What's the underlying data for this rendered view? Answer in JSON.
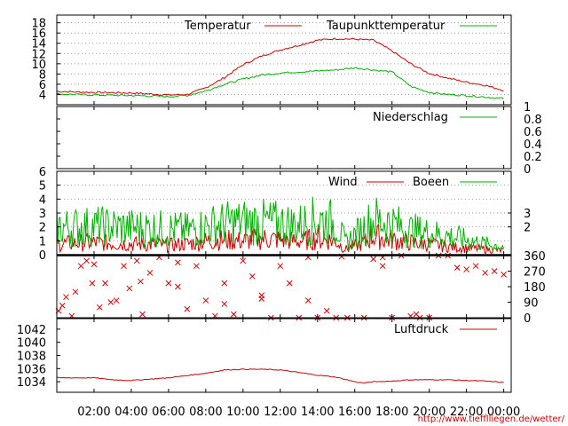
{
  "credit": "http://www.tiefflliegen.de/wetter/",
  "x_axis": {
    "hours": [
      2,
      4,
      6,
      8,
      10,
      12,
      14,
      16,
      18,
      20,
      22,
      24
    ],
    "labels": [
      "02:00",
      "04:00",
      "06:00",
      "08:00",
      "10:00",
      "12:00",
      "14:00",
      "16:00",
      "18:00",
      "20:00",
      "22:00",
      "00:00"
    ],
    "range_hours": [
      0,
      24.4
    ]
  },
  "colors": {
    "red": "#cc0000",
    "green": "#00b000",
    "grid": "#999999"
  },
  "chart_data": [
    {
      "type": "line",
      "panel": "temperature",
      "ylim": [
        2,
        19.5
      ],
      "yticks": [
        4,
        6,
        8,
        10,
        12,
        14,
        16,
        18
      ],
      "grid": true,
      "legend": "top-right",
      "x": [
        0,
        2,
        4,
        6,
        7,
        8,
        9,
        10,
        11,
        12,
        13,
        14,
        15,
        16,
        17,
        18,
        19,
        20,
        21,
        22,
        23,
        24
      ],
      "series": [
        {
          "name": "Temperatur",
          "color": "red",
          "values": [
            4.6,
            4.4,
            4.3,
            3.9,
            4.0,
            5.3,
            7.3,
            9.8,
            11.5,
            12.7,
            13.6,
            14.6,
            14.9,
            14.8,
            14.6,
            12.5,
            10.0,
            8.1,
            7.2,
            6.4,
            5.8,
            4.8
          ]
        },
        {
          "name": "Taupunkttemperatur",
          "color": "green",
          "values": [
            4.1,
            3.9,
            3.8,
            3.6,
            3.8,
            4.7,
            6.0,
            7.0,
            7.8,
            8.2,
            8.4,
            8.6,
            8.8,
            9.2,
            8.8,
            8.4,
            5.6,
            4.4,
            4.0,
            3.8,
            3.5,
            3.2
          ]
        }
      ]
    },
    {
      "type": "line",
      "panel": "precipitation",
      "ylim": [
        0,
        1
      ],
      "yticks": [
        0,
        0.2,
        0.4,
        0.6,
        0.8,
        1
      ],
      "legend": "top-right",
      "x": [
        0,
        24
      ],
      "series": [
        {
          "name": "Niederschlag",
          "color": "green",
          "values": [
            0,
            0
          ]
        }
      ]
    },
    {
      "type": "line",
      "panel": "wind",
      "ylim": [
        0,
        6
      ],
      "yticks": [
        0,
        1,
        2,
        3,
        4,
        5,
        6
      ],
      "right_yticks": [
        2,
        3
      ],
      "grid": true,
      "legend": "top-right",
      "x": [
        0,
        2,
        4,
        6,
        7,
        8,
        9,
        10,
        11,
        12,
        13,
        14,
        15,
        15.5,
        16.5,
        17,
        18,
        19,
        20,
        21,
        22,
        23,
        24
      ],
      "series": [
        {
          "name": "Wind",
          "color": "red",
          "values": [
            0.8,
            0.9,
            0.8,
            0.7,
            0.8,
            1.0,
            1.1,
            1.0,
            1.2,
            1.1,
            1.0,
            1.2,
            1.0,
            0.4,
            0.9,
            1.4,
            1.1,
            0.9,
            0.8,
            0.6,
            0.5,
            0.4,
            0.3
          ]
        },
        {
          "name": "Boeen",
          "color": "green",
          "values": [
            2.0,
            2.1,
            2.0,
            1.9,
            1.8,
            2.1,
            2.3,
            2.4,
            2.4,
            2.3,
            2.2,
            2.6,
            2.3,
            0.9,
            2.0,
            2.6,
            2.3,
            1.8,
            1.6,
            1.4,
            1.1,
            0.8,
            0.6
          ]
        }
      ]
    },
    {
      "type": "scatter",
      "panel": "wind_direction",
      "ylim": [
        0,
        360
      ],
      "right_yticks": [
        0,
        90,
        180,
        270,
        360
      ],
      "x": [
        0.1,
        0.3,
        0.5,
        0.8,
        1.0,
        1.3,
        1.6,
        1.9,
        2.3,
        2.6,
        2.9,
        3.2,
        3.6,
        3.9,
        4.3,
        4.6,
        5.0,
        5.5,
        6.0,
        6.5,
        7.0,
        7.5,
        8.0,
        8.5,
        9.0,
        9.5,
        10.0,
        10.5,
        11.0,
        11.5,
        12.0,
        12.5,
        13.0,
        13.5,
        14.0,
        14.5,
        15.0,
        15.3,
        15.6,
        16.5,
        17.0,
        17.5,
        18.0,
        18.5,
        19.0,
        19.3,
        20.0,
        20.5,
        21.0,
        21.5,
        22.0,
        22.5,
        23.0,
        23.5,
        24.0,
        2.0,
        4.5,
        6.5,
        9.0,
        11.0,
        13.5,
        17.5,
        19.5
      ],
      "values": [
        40,
        70,
        120,
        10,
        150,
        300,
        330,
        200,
        60,
        200,
        90,
        100,
        300,
        170,
        330,
        20,
        260,
        350,
        200,
        320,
        50,
        300,
        100,
        10,
        200,
        20,
        330,
        240,
        110,
        0,
        300,
        200,
        0,
        350,
        0,
        40,
        0,
        355,
        0,
        0,
        340,
        350,
        0,
        360,
        10,
        20,
        0,
        360,
        360,
        290,
        280,
        300,
        260,
        270,
        250,
        310,
        210,
        180,
        80,
        130,
        100,
        300,
        0
      ]
    },
    {
      "type": "line",
      "panel": "pressure",
      "ylim": [
        1032.4,
        1043.6
      ],
      "yticks": [
        1034,
        1036,
        1038,
        1040,
        1042
      ],
      "legend": "top-right",
      "x": [
        0,
        2,
        3,
        4,
        6,
        8,
        9,
        10,
        11,
        12,
        13,
        14,
        15,
        16,
        16.5,
        17,
        18,
        19,
        20,
        21,
        22,
        23,
        24
      ],
      "series": [
        {
          "name": "Luftdruck",
          "color": "red",
          "values": [
            1034.6,
            1034.6,
            1034.3,
            1034.2,
            1034.6,
            1035.3,
            1035.8,
            1035.9,
            1035.9,
            1035.8,
            1035.4,
            1035.0,
            1034.7,
            1034.0,
            1033.8,
            1034.0,
            1034.1,
            1034.3,
            1034.3,
            1034.3,
            1034.2,
            1034.1,
            1033.9
          ]
        }
      ]
    }
  ]
}
